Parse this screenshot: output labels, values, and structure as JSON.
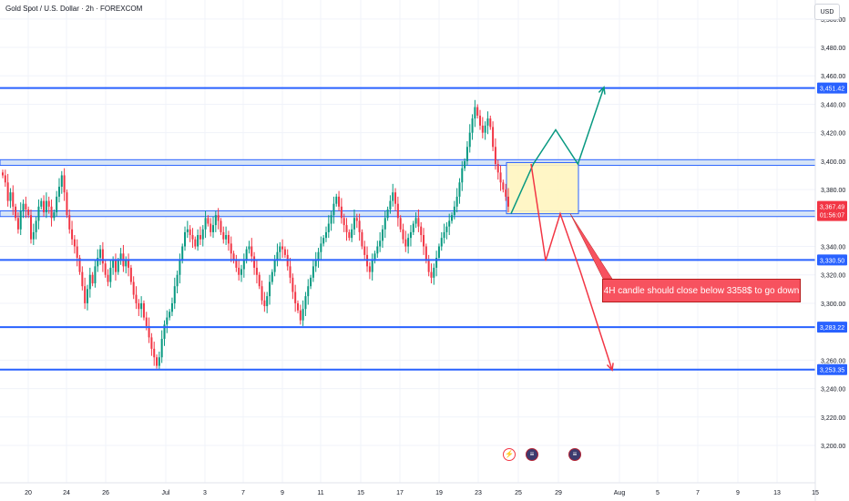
{
  "title": "Gold Spot / U.S. Dollar · 2h · FOREXCOM",
  "currency_button": "USD",
  "annotation": "4H candle should close below 3358$ to go down",
  "events": [
    {
      "name": "earnings-event-icon",
      "glyph": "⚡"
    },
    {
      "name": "us-flag-event-icon",
      "glyph": "≡"
    },
    {
      "name": "us-flag-event-icon",
      "glyph": "≡"
    }
  ],
  "colors": {
    "up": "#089981",
    "down": "#f23645",
    "level": "#2962ff",
    "box_fill": "#fff5c0",
    "zone_fill": "#d6e4f6",
    "label_bg": "#2962ff",
    "price_label_bg": "#f23645"
  },
  "chart_data": {
    "type": "candlestick",
    "symbol": "Gold Spot / U.S. Dollar",
    "timeframe": "2h",
    "y_range": [
      3190,
      3505
    ],
    "y_ticks": [
      3200,
      3220,
      3240,
      3260,
      3300,
      3320,
      3340,
      3380,
      3400,
      3420,
      3440,
      3460,
      3480,
      3500
    ],
    "y_tick_labels": [
      "3,200.00",
      "3,220.00",
      "3,240.00",
      "3,260.00",
      "3,300.00",
      "3,320.00",
      "3,340.00",
      "3,380.00",
      "3,400.00",
      "3,420.00",
      "3,440.00",
      "3,460.00",
      "3,480.00",
      "3,500.00"
    ],
    "x_ticks": [
      "20",
      "24",
      "26",
      "Jul",
      "3",
      "7",
      "9",
      "11",
      "15",
      "17",
      "19",
      "23",
      "25",
      "29",
      "Aug",
      "5",
      "7",
      "9",
      "13",
      "15"
    ],
    "levels": [
      {
        "label": "3,451.42",
        "value": 3451.42
      },
      {
        "label": "3,330.50",
        "value": 3330.5
      },
      {
        "label": "3,283.22",
        "value": 3283.22
      },
      {
        "label": "3,253.35",
        "value": 3253.35
      }
    ],
    "current_price": {
      "label": "3,367.49",
      "countdown": "01:56:07",
      "value": 3367.49
    },
    "resistance_zone": [
      3397,
      3401
    ],
    "support_zone": [
      3361,
      3365
    ],
    "box_zone": [
      3363,
      3399
    ],
    "projection_up": [
      {
        "t": 0,
        "v": 3363
      },
      {
        "t": 0.24,
        "v": 3398
      },
      {
        "t": 0.48,
        "v": 3422
      },
      {
        "t": 0.72,
        "v": 3398
      },
      {
        "t": 1,
        "v": 3452
      }
    ],
    "projection_down": [
      {
        "t": 0,
        "v": 3398
      },
      {
        "t": 0.18,
        "v": 3330
      },
      {
        "t": 0.36,
        "v": 3363
      },
      {
        "t": 0.61,
        "v": 3322
      },
      {
        "t": 1,
        "v": 3253
      }
    ],
    "candles_close": [
      3390,
      3385,
      3372,
      3378,
      3368,
      3360,
      3352,
      3365,
      3370,
      3366,
      3362,
      3345,
      3350,
      3358,
      3368,
      3372,
      3364,
      3372,
      3368,
      3360,
      3364,
      3375,
      3382,
      3390,
      3378,
      3362,
      3352,
      3345,
      3340,
      3332,
      3322,
      3312,
      3300,
      3310,
      3320,
      3314,
      3326,
      3332,
      3338,
      3328,
      3320,
      3315,
      3325,
      3330,
      3322,
      3330,
      3335,
      3326,
      3330,
      3325,
      3315,
      3306,
      3300,
      3296,
      3300,
      3290,
      3284,
      3276,
      3268,
      3262,
      3256,
      3262,
      3275,
      3285,
      3290,
      3294,
      3300,
      3312,
      3320,
      3330,
      3340,
      3350,
      3352,
      3348,
      3345,
      3340,
      3348,
      3345,
      3352,
      3360,
      3356,
      3350,
      3355,
      3362,
      3358,
      3350,
      3345,
      3348,
      3342,
      3335,
      3330,
      3325,
      3320,
      3324,
      3330,
      3338,
      3340,
      3333,
      3325,
      3320,
      3312,
      3302,
      3298,
      3305,
      3315,
      3322,
      3330,
      3336,
      3340,
      3338,
      3334,
      3326,
      3318,
      3308,
      3300,
      3295,
      3288,
      3296,
      3305,
      3312,
      3318,
      3326,
      3330,
      3336,
      3342,
      3346,
      3350,
      3356,
      3362,
      3370,
      3375,
      3368,
      3360,
      3355,
      3350,
      3346,
      3352,
      3360,
      3358,
      3350,
      3340,
      3334,
      3326,
      3322,
      3330,
      3335,
      3340,
      3344,
      3352,
      3360,
      3366,
      3372,
      3378,
      3370,
      3360,
      3352,
      3345,
      3340,
      3346,
      3350,
      3356,
      3360,
      3354,
      3348,
      3340,
      3330,
      3322,
      3318,
      3325,
      3332,
      3340,
      3346,
      3350,
      3354,
      3358,
      3362,
      3368,
      3375,
      3385,
      3395,
      3400,
      3410,
      3420,
      3430,
      3438,
      3432,
      3425,
      3420,
      3425,
      3430,
      3424,
      3410,
      3398,
      3392,
      3385,
      3380,
      3375,
      3368
    ]
  }
}
